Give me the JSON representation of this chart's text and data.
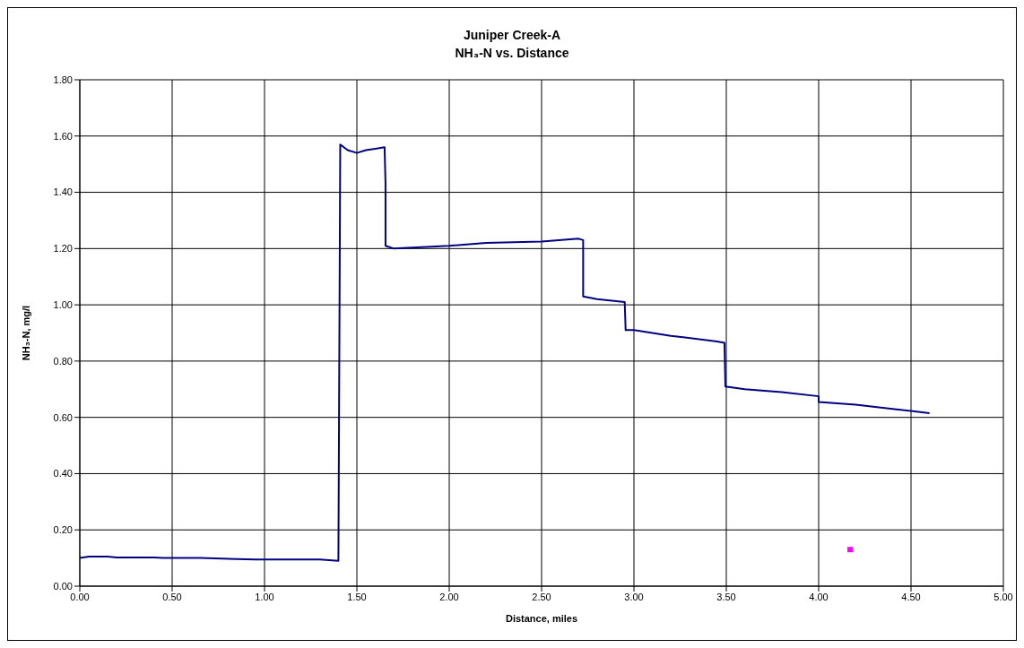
{
  "chart_data": {
    "type": "line",
    "title": "Juniper Creek-A",
    "subtitle": "NH₃-N vs. Distance",
    "xlabel": "Distance, miles",
    "ylabel": "NH₃-N, mg/l",
    "series": [
      {
        "color": "#000080",
        "x": [
          0,
          0.05,
          0.15,
          0.2,
          0.4,
          0.45,
          0.65,
          0.95,
          1.3,
          1.4,
          1.41,
          1.45,
          1.5,
          1.55,
          1.6,
          1.65,
          1.655,
          1.655,
          1.7,
          1.85,
          2.0,
          2.2,
          2.5,
          2.7,
          2.725,
          2.725,
          2.8,
          2.95,
          2.955,
          3.0,
          3.2,
          3.45,
          3.49,
          3.495,
          3.6,
          3.8,
          4.0,
          4.0,
          4.2,
          4.4,
          4.6
        ],
        "values": [
          0.1,
          0.105,
          0.105,
          0.102,
          0.102,
          0.1,
          0.1,
          0.095,
          0.095,
          0.09,
          1.57,
          1.55,
          1.54,
          1.55,
          1.555,
          1.56,
          1.43,
          1.21,
          1.2,
          1.205,
          1.21,
          1.22,
          1.225,
          1.235,
          1.23,
          1.03,
          1.02,
          1.01,
          0.91,
          0.91,
          0.89,
          0.87,
          0.865,
          0.71,
          0.7,
          0.69,
          0.675,
          0.655,
          0.645,
          0.63,
          0.615
        ]
      },
      {
        "type": "scatter",
        "color": "#ff00ff",
        "marker": "square",
        "x": [
          4.17
        ],
        "values": [
          0.13
        ]
      }
    ],
    "xlim": [
      0,
      5
    ],
    "xticks": [
      {
        "value": 0,
        "label": "0.00"
      },
      {
        "value": 0.5,
        "label": "0.50"
      },
      {
        "value": 1,
        "label": "1.00"
      },
      {
        "value": 1.5,
        "label": "1.50"
      },
      {
        "value": 2,
        "label": "2.00"
      },
      {
        "value": 2.5,
        "label": "2.50"
      },
      {
        "value": 3,
        "label": "3.00"
      },
      {
        "value": 3.5,
        "label": "3.50"
      },
      {
        "value": 4,
        "label": "4.00"
      },
      {
        "value": 4.5,
        "label": "4.50"
      },
      {
        "value": 5,
        "label": "5.00"
      }
    ],
    "ylim": [
      0,
      1.8
    ],
    "yticks": [
      {
        "value": 0,
        "label": "0.00"
      },
      {
        "value": 0.2,
        "label": "0.20"
      },
      {
        "value": 0.4,
        "label": "0.40"
      },
      {
        "value": 0.6,
        "label": "0.60"
      },
      {
        "value": 0.8,
        "label": "0.80"
      },
      {
        "value": 1,
        "label": "1.00"
      },
      {
        "value": 1.2,
        "label": "1.20"
      },
      {
        "value": 1.4,
        "label": "1.40"
      },
      {
        "value": 1.6,
        "label": "1.60"
      },
      {
        "value": 1.8,
        "label": "1.80"
      }
    ],
    "grid": true
  }
}
